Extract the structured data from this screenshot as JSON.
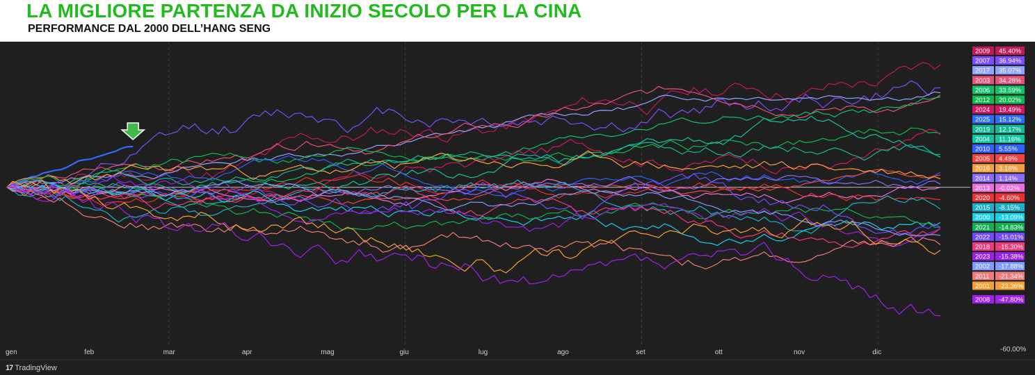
{
  "header": {
    "title": "LA MIGLIORE PARTENZA DA INIZIO SECOLO PER LA CINA",
    "subtitle": "PERFORMANCE DAL 2000 DELL’HANG SENG"
  },
  "footer": {
    "brand": "TradingView",
    "logo_icon": "tradingview-logo-icon"
  },
  "colors": {
    "background": "#1f1f1f",
    "grid": "#3a3a3a",
    "axis_text": "#cfcfcf",
    "marker": "#3fb94a",
    "zero_line": "#cfcfcf"
  },
  "chart_data": {
    "type": "line",
    "title": "",
    "xlabel": "",
    "ylabel": "",
    "x_ticks": [
      "gen",
      "feb",
      "mar",
      "apr",
      "mag",
      "giu",
      "lug",
      "ago",
      "set",
      "ott",
      "nov",
      "dic"
    ],
    "y_ticks": [
      "-60.00%"
    ],
    "y_tick_values": [
      -60
    ],
    "ylim": [
      -62,
      52
    ],
    "grid": true,
    "legend_position": "right",
    "annotations": [
      "down-arrow marker on the 2025 series end (mid-February)"
    ],
    "series": [
      {
        "name": "2009",
        "value": 45.4,
        "label": "45.40%",
        "color": "#c2185b",
        "seed": 11,
        "vol": 5.0
      },
      {
        "name": "2007",
        "value": 36.94,
        "label": "36.94%",
        "color": "#7c4dff",
        "seed": 12,
        "vol": 5.5
      },
      {
        "name": "2017",
        "value": 35.07,
        "label": "35.07%",
        "color": "#90a4ff",
        "seed": 13,
        "vol": 2.0
      },
      {
        "name": "2003",
        "value": 34.28,
        "label": "34.28%",
        "color": "#e8507a",
        "seed": 14,
        "vol": 3.0
      },
      {
        "name": "2006",
        "value": 33.59,
        "label": "33.59%",
        "color": "#12c06a",
        "seed": 15,
        "vol": 2.5
      },
      {
        "name": "2012",
        "value": 20.02,
        "label": "20.02%",
        "color": "#10b850",
        "seed": 16,
        "vol": 3.0
      },
      {
        "name": "2024",
        "value": 19.49,
        "label": "19.49%",
        "color": "#d01860",
        "seed": 17,
        "vol": 4.0
      },
      {
        "name": "2025",
        "value": 15.12,
        "label": "15.12%",
        "color": "#2f6bff",
        "seed": 18,
        "vol": 1.2,
        "partial": 0.135
      },
      {
        "name": "2019",
        "value": 12.17,
        "label": "12.17%",
        "color": "#14b896",
        "seed": 19,
        "vol": 3.0
      },
      {
        "name": "2004",
        "value": 11.16,
        "label": "11.16%",
        "color": "#12c5a0",
        "seed": 20,
        "vol": 3.5
      },
      {
        "name": "2010",
        "value": 5.55,
        "label": "5.55%",
        "color": "#2f5fff",
        "seed": 21,
        "vol": 3.0
      },
      {
        "name": "2005",
        "value": 4.49,
        "label": "4.49%",
        "color": "#f04444",
        "seed": 22,
        "vol": 2.0
      },
      {
        "name": "2016",
        "value": 3.16,
        "label": "3.16%",
        "color": "#f5a040",
        "seed": 23,
        "vol": 3.5
      },
      {
        "name": "2014",
        "value": 1.14,
        "label": "1.14%",
        "color": "#8a6bff",
        "seed": 24,
        "vol": 2.5
      },
      {
        "name": "2013",
        "value": -0.02,
        "label": "-0.02%",
        "color": "#e870d8",
        "seed": 25,
        "vol": 2.5
      },
      {
        "name": "2020",
        "value": -4.6,
        "label": "-4.60%",
        "color": "#ee3030",
        "seed": 26,
        "vol": 3.0
      },
      {
        "name": "2015",
        "value": -8.15,
        "label": "-8.15%",
        "color": "#1bb0c8",
        "seed": 27,
        "vol": 4.0
      },
      {
        "name": "2000",
        "value": -13.09,
        "label": "-13.09%",
        "color": "#18d0e8",
        "seed": 28,
        "vol": 3.5
      },
      {
        "name": "2021",
        "value": -14.83,
        "label": "-14.83%",
        "color": "#12b050",
        "seed": 29,
        "vol": 3.0
      },
      {
        "name": "2022",
        "value": -15.01,
        "label": "-15.01%",
        "color": "#7048ff",
        "seed": 30,
        "vol": 5.0
      },
      {
        "name": "2018",
        "value": -15.3,
        "label": "-15.30%",
        "color": "#f03878",
        "seed": 31,
        "vol": 3.5
      },
      {
        "name": "2023",
        "value": -15.38,
        "label": "-15.38%",
        "color": "#9a20e8",
        "seed": 32,
        "vol": 4.0
      },
      {
        "name": "2002",
        "value": -17.88,
        "label": "-17.88%",
        "color": "#7e9cff",
        "seed": 33,
        "vol": 2.5
      },
      {
        "name": "2011",
        "value": -21.34,
        "label": "-21.34%",
        "color": "#f07a7a",
        "seed": 34,
        "vol": 4.0
      },
      {
        "name": "2001",
        "value": -23.36,
        "label": "-23.36%",
        "color": "#f5a030",
        "seed": 35,
        "vol": 5.0
      },
      {
        "name": "2008",
        "value": -47.8,
        "label": "-47.80%",
        "color": "#a020f0",
        "seed": 36,
        "vol": 6.0
      }
    ]
  }
}
